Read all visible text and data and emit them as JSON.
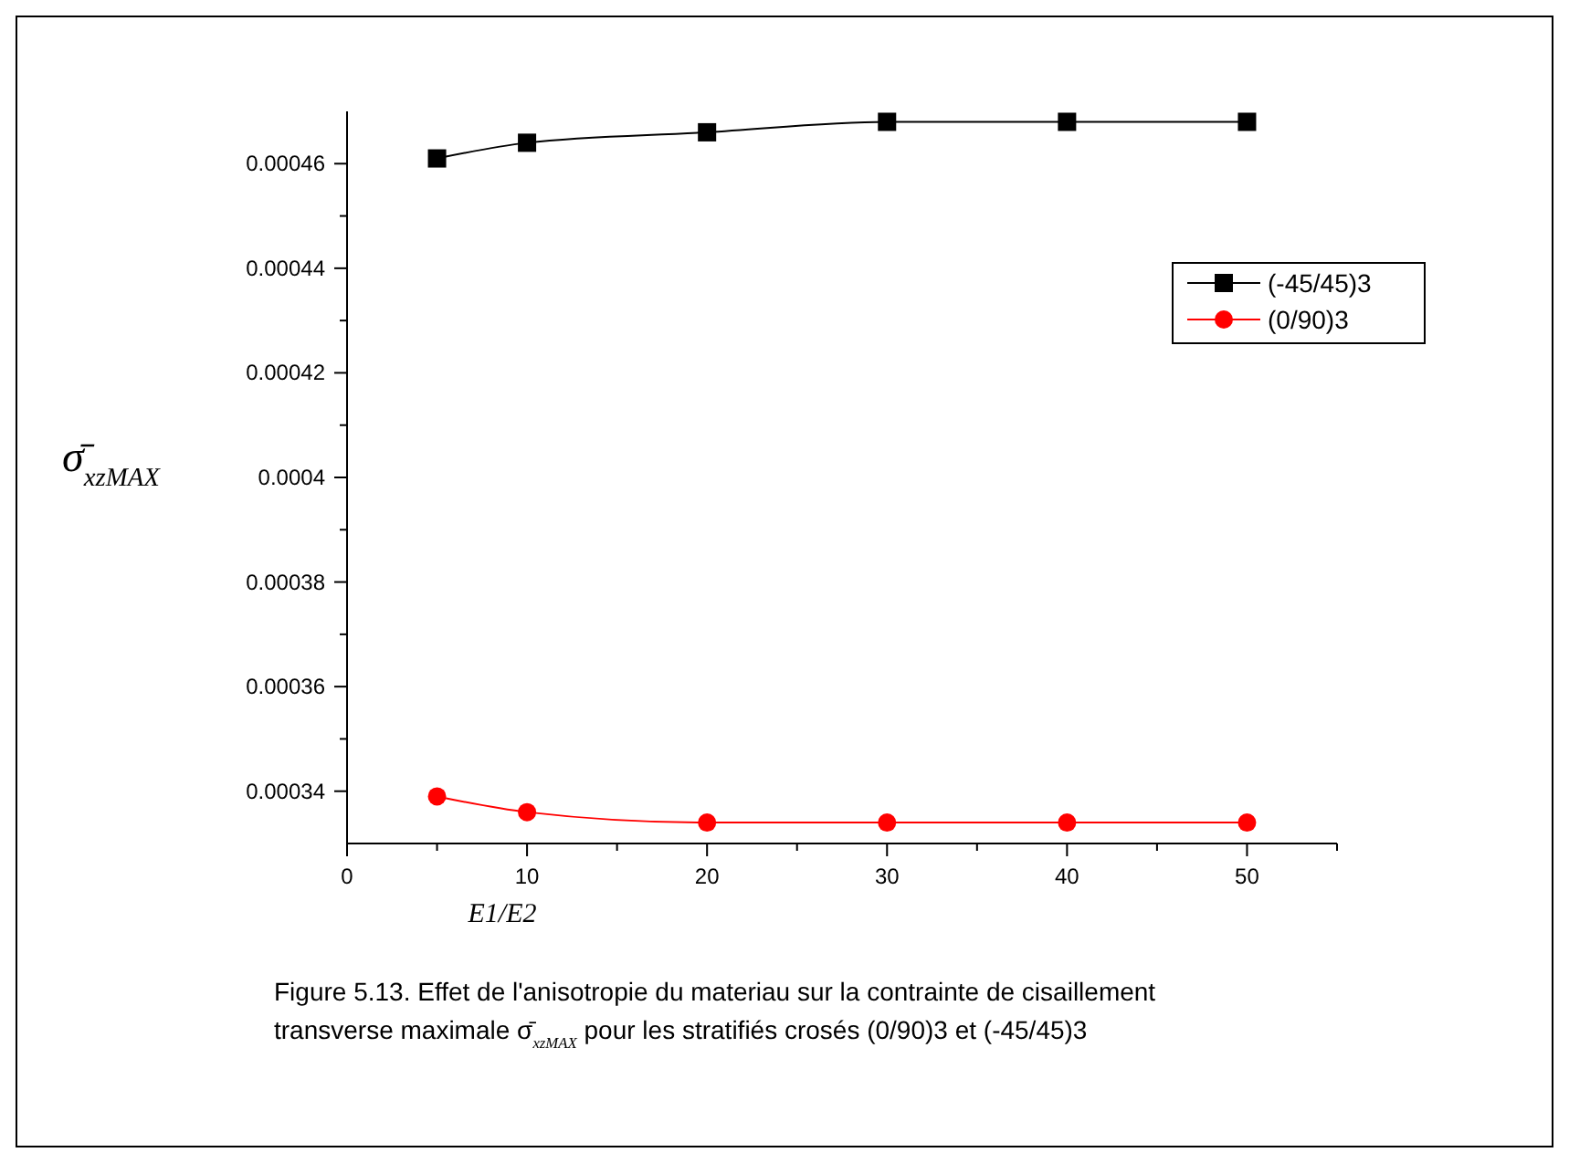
{
  "chart_data": {
    "type": "line",
    "xlabel": "E1/E2",
    "ylabel": "σ̄$_{xzMAX}$",
    "x": [
      5,
      10,
      20,
      30,
      40,
      50
    ],
    "series": [
      {
        "name": "(-45/45)3",
        "color": "#000000",
        "marker": "square",
        "values": [
          0.000461,
          0.000464,
          0.000466,
          0.000468,
          0.000468,
          0.000468
        ]
      },
      {
        "name": "(0/90)3",
        "color": "#ff0000",
        "marker": "circle",
        "values": [
          0.000339,
          0.000336,
          0.000334,
          0.000334,
          0.000334,
          0.000334
        ]
      }
    ],
    "xlim": [
      0,
      55
    ],
    "xticks": [
      0,
      {
        "value": 5,
        "label": null
      },
      10,
      {
        "value": 15,
        "label": null
      },
      20,
      {
        "value": 25,
        "label": null
      },
      30,
      {
        "value": 35,
        "label": null
      },
      40,
      {
        "value": 45,
        "label": null
      },
      50,
      {
        "value": 55,
        "label": null
      }
    ],
    "ylim": [
      0.00033,
      0.00047
    ],
    "yticks": [
      0.00034,
      {
        "value": 0.00035,
        "label": null
      },
      0.00036,
      {
        "value": 0.00037,
        "label": null
      },
      0.00038,
      {
        "value": 0.00039,
        "label": null
      },
      0.0004,
      {
        "value": 0.00041,
        "label": null
      },
      0.00042,
      {
        "value": 0.00043,
        "label": null
      },
      0.00044,
      {
        "value": 0.00045,
        "label": null
      },
      0.00046
    ],
    "legend": "top right",
    "grid": false,
    "line_style": "solid",
    "annotations": [
      "Figure 5.13. Effet de l'anisotropie du materiau sur la contrainte de cisaillement",
      "transverse maximale σ̄$_{xzMAX}$ pour les stratifiés crosés (0/90)3 et  (-45/45)3"
    ]
  }
}
